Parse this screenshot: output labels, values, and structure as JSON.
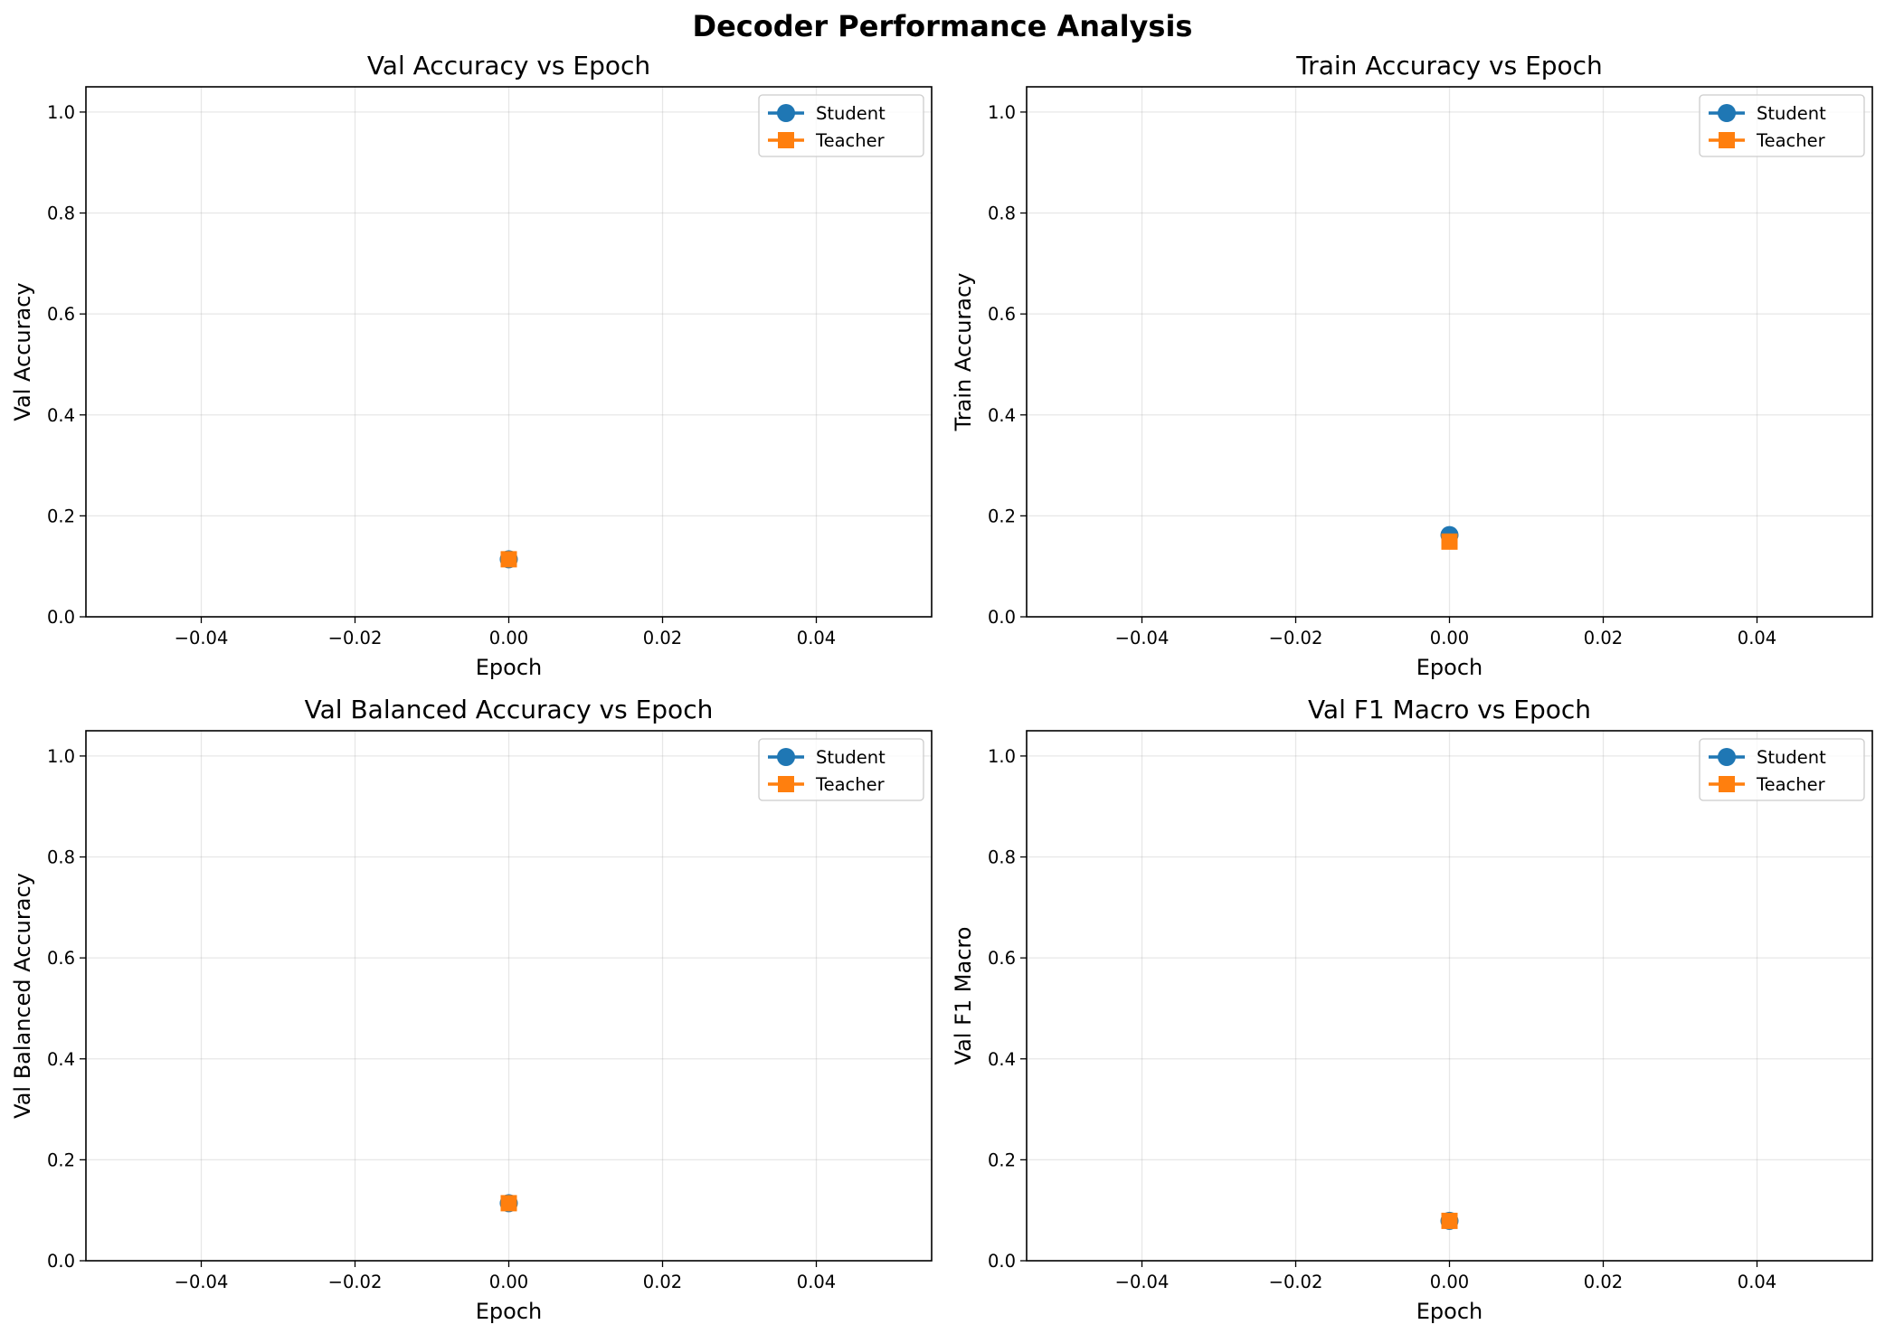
{
  "figure": {
    "title": "Decoder Performance Analysis"
  },
  "chart_data": [
    {
      "type": "line",
      "title": "Val Accuracy vs Epoch",
      "xlabel": "Epoch",
      "ylabel": "Val Accuracy",
      "xlim": [
        -0.055,
        0.055
      ],
      "ylim": [
        0.0,
        1.05
      ],
      "xticks": [
        -0.04,
        -0.02,
        0.0,
        0.02,
        0.04
      ],
      "xtick_labels": [
        "−0.04",
        "−0.02",
        "0.00",
        "0.02",
        "0.04"
      ],
      "yticks": [
        0.0,
        0.2,
        0.4,
        0.6,
        0.8,
        1.0
      ],
      "ytick_labels": [
        "0.0",
        "0.2",
        "0.4",
        "0.6",
        "0.8",
        "1.0"
      ],
      "grid": true,
      "legend_position": "top-right",
      "series": [
        {
          "name": "Student",
          "color": "#1f77b4",
          "marker": "circle",
          "x": [
            0.0
          ],
          "y": [
            0.114
          ]
        },
        {
          "name": "Teacher",
          "color": "#ff7f0e",
          "marker": "square",
          "x": [
            0.0
          ],
          "y": [
            0.114
          ]
        }
      ]
    },
    {
      "type": "line",
      "title": "Train Accuracy vs Epoch",
      "xlabel": "Epoch",
      "ylabel": "Train Accuracy",
      "xlim": [
        -0.055,
        0.055
      ],
      "ylim": [
        0.0,
        1.05
      ],
      "xticks": [
        -0.04,
        -0.02,
        0.0,
        0.02,
        0.04
      ],
      "xtick_labels": [
        "−0.04",
        "−0.02",
        "0.00",
        "0.02",
        "0.04"
      ],
      "yticks": [
        0.0,
        0.2,
        0.4,
        0.6,
        0.8,
        1.0
      ],
      "ytick_labels": [
        "0.0",
        "0.2",
        "0.4",
        "0.6",
        "0.8",
        "1.0"
      ],
      "grid": true,
      "legend_position": "top-right",
      "series": [
        {
          "name": "Student",
          "color": "#1f77b4",
          "marker": "circle",
          "x": [
            0.0
          ],
          "y": [
            0.162
          ]
        },
        {
          "name": "Teacher",
          "color": "#ff7f0e",
          "marker": "square",
          "x": [
            0.0
          ],
          "y": [
            0.149
          ]
        }
      ]
    },
    {
      "type": "line",
      "title": "Val Balanced Accuracy vs Epoch",
      "xlabel": "Epoch",
      "ylabel": "Val Balanced Accuracy",
      "xlim": [
        -0.055,
        0.055
      ],
      "ylim": [
        0.0,
        1.05
      ],
      "xticks": [
        -0.04,
        -0.02,
        0.0,
        0.02,
        0.04
      ],
      "xtick_labels": [
        "−0.04",
        "−0.02",
        "0.00",
        "0.02",
        "0.04"
      ],
      "yticks": [
        0.0,
        0.2,
        0.4,
        0.6,
        0.8,
        1.0
      ],
      "ytick_labels": [
        "0.0",
        "0.2",
        "0.4",
        "0.6",
        "0.8",
        "1.0"
      ],
      "grid": true,
      "legend_position": "top-right",
      "series": [
        {
          "name": "Student",
          "color": "#1f77b4",
          "marker": "circle",
          "x": [
            0.0
          ],
          "y": [
            0.114
          ]
        },
        {
          "name": "Teacher",
          "color": "#ff7f0e",
          "marker": "square",
          "x": [
            0.0
          ],
          "y": [
            0.114
          ]
        }
      ]
    },
    {
      "type": "line",
      "title": "Val F1 Macro vs Epoch",
      "xlabel": "Epoch",
      "ylabel": "Val F1 Macro",
      "xlim": [
        -0.055,
        0.055
      ],
      "ylim": [
        0.0,
        1.05
      ],
      "xticks": [
        -0.04,
        -0.02,
        0.0,
        0.02,
        0.04
      ],
      "xtick_labels": [
        "−0.04",
        "−0.02",
        "0.00",
        "0.02",
        "0.04"
      ],
      "yticks": [
        0.0,
        0.2,
        0.4,
        0.6,
        0.8,
        1.0
      ],
      "ytick_labels": [
        "0.0",
        "0.2",
        "0.4",
        "0.6",
        "0.8",
        "1.0"
      ],
      "grid": true,
      "legend_position": "top-right",
      "series": [
        {
          "name": "Student",
          "color": "#1f77b4",
          "marker": "circle",
          "x": [
            0.0
          ],
          "y": [
            0.079
          ]
        },
        {
          "name": "Teacher",
          "color": "#ff7f0e",
          "marker": "square",
          "x": [
            0.0
          ],
          "y": [
            0.079
          ]
        }
      ]
    }
  ]
}
